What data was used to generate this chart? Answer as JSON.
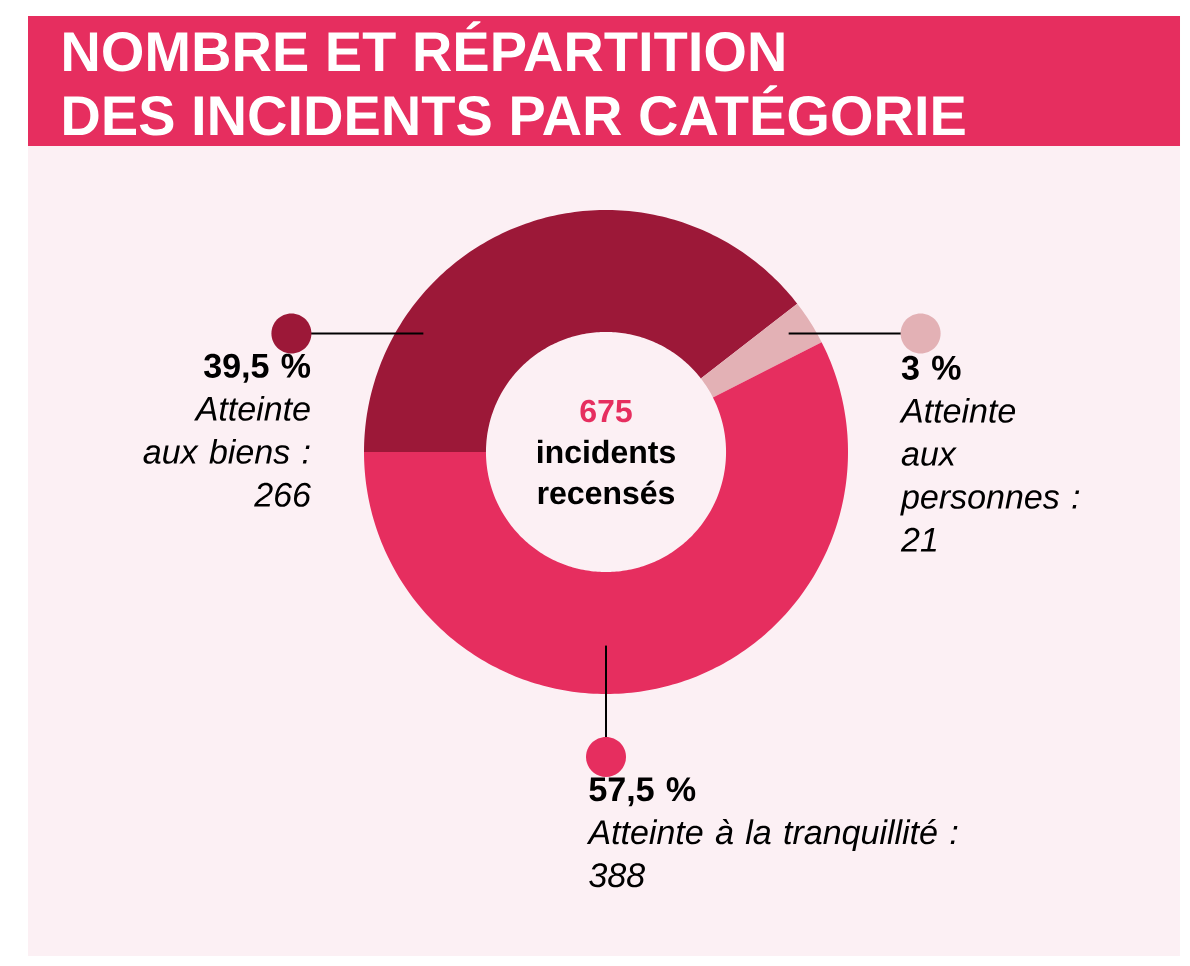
{
  "chart_data": {
    "type": "donut",
    "title": "NOMBRE ET RÉPARTITION DES INCIDENTS PAR CATÉGORIE",
    "categories": [
      "Atteinte aux biens : 266",
      "Atteinte aux personnes : 21",
      "Atteinte à la tranquillité : 388"
    ],
    "values": [
      39.5,
      3,
      57.5
    ],
    "value_labels": [
      "39,5 %",
      "3 %",
      "57,5 %"
    ],
    "colors": [
      "#9c1838",
      "#e3b1b5",
      "#e62e5f"
    ],
    "annotations": [
      "675",
      "incidents recensés"
    ]
  }
}
